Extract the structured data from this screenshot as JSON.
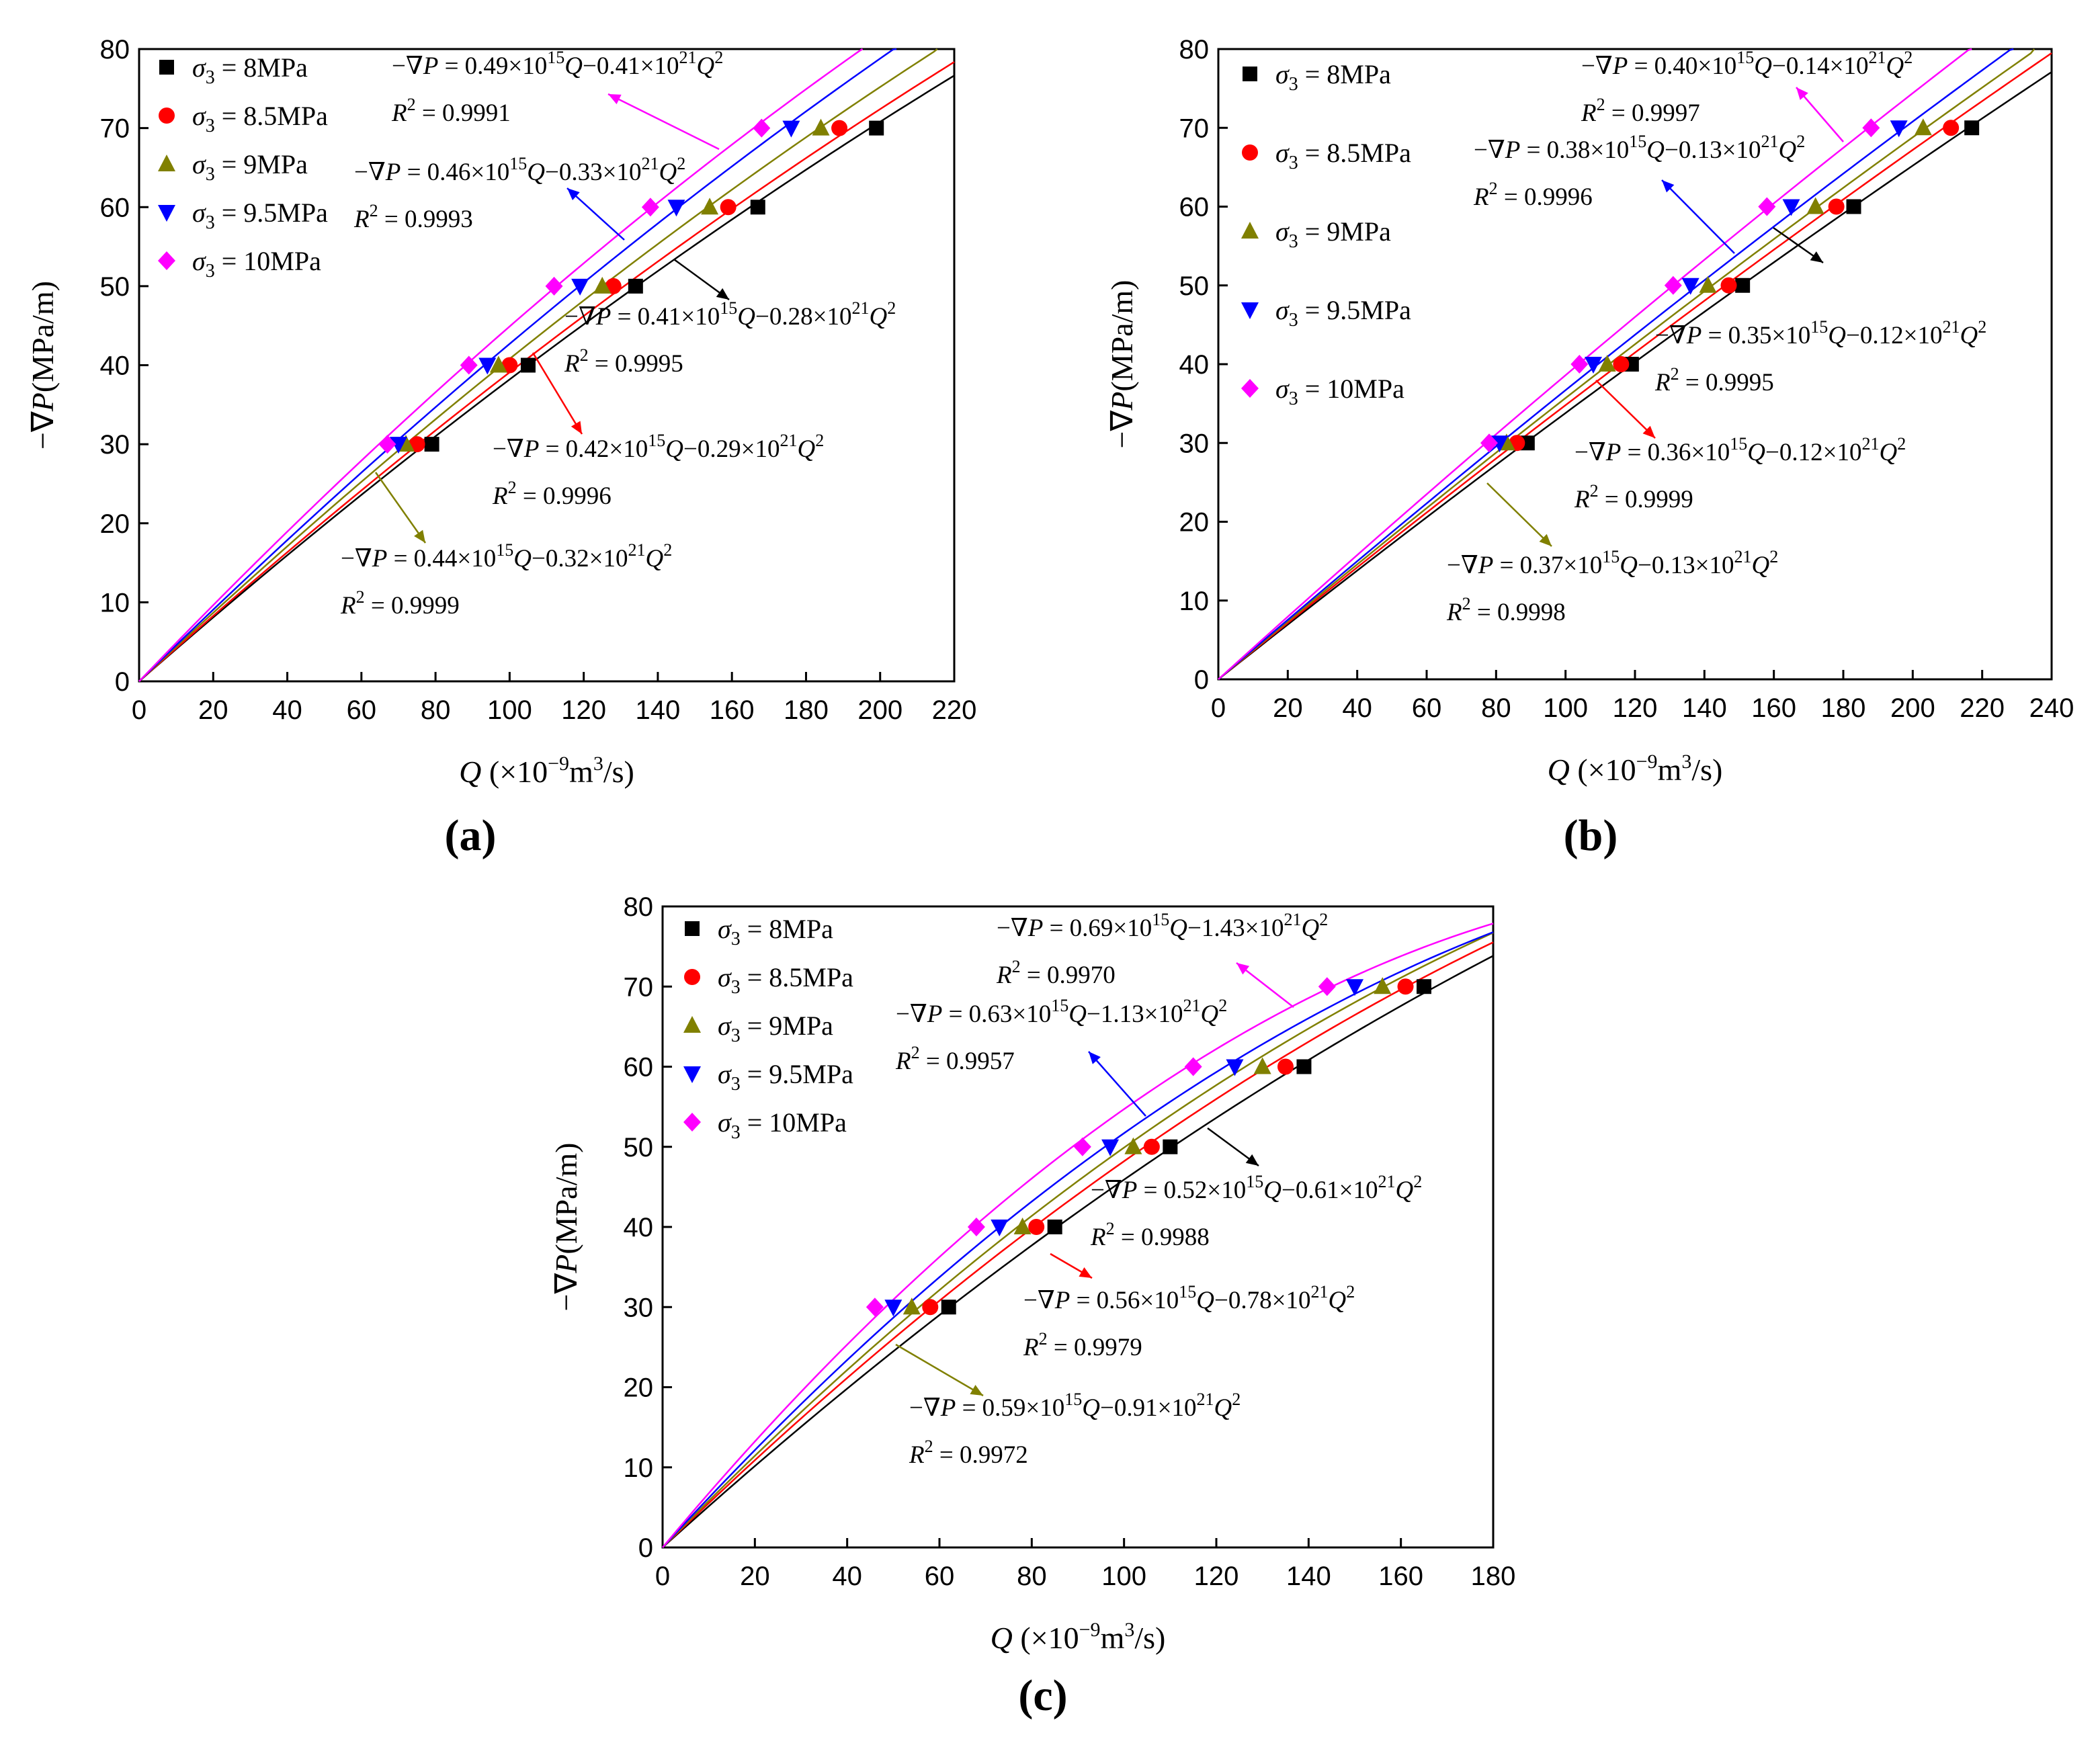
{
  "figure": {
    "legend_symbol": "σ",
    "legend_subscript": "3",
    "legend_infix": " = ",
    "x_axis_prefix": "Q",
    "x_axis_unit_open": "(×10",
    "x_axis_unit_exp": "−9",
    "x_axis_unit_mid": "m",
    "x_axis_unit_exp2": "3",
    "x_axis_unit_close": "/s)",
    "y_axis_pre": "−∇",
    "y_axis_var": "P",
    "y_axis_unit": "(MPa/m)",
    "eq_lhs": "−∇",
    "eq_lhs_var": "P",
    "eq_equals": " = ",
    "eq_times": "×10",
    "eq_exp1": "15",
    "eq_exp2": "21",
    "eq_var": "Q",
    "eq_minus": "−",
    "eq_square": "2",
    "r2_var": "R",
    "r2_exp": "2",
    "r2_equals": " = "
  },
  "chart_data": [
    {
      "panel": "(a)",
      "type": "scatter",
      "xlabel": "Q (×10⁻⁹m³/s)",
      "ylabel": "−∇P(MPa/m)",
      "xlim": [
        0,
        220
      ],
      "ylim": [
        0,
        80
      ],
      "xticks": [
        0,
        20,
        40,
        60,
        80,
        100,
        120,
        140,
        160,
        180,
        200,
        220
      ],
      "yticks": [
        0,
        10,
        20,
        30,
        40,
        50,
        60,
        70,
        80
      ],
      "y_points": [
        30,
        40,
        50,
        60,
        70
      ],
      "series": [
        {
          "name": "8MPa",
          "color": "#000000",
          "marker": "square",
          "x": [
            79,
            105,
            134,
            167,
            199
          ],
          "fit": {
            "a": 0.41,
            "b": 0.28,
            "a_label": "0.41",
            "b_label": "0.28",
            "r2": "0.9995"
          }
        },
        {
          "name": "8.5MPa",
          "color": "#ff0000",
          "marker": "circle",
          "x": [
            75,
            100,
            128,
            159,
            189
          ],
          "fit": {
            "a": 0.42,
            "b": 0.29,
            "a_label": "0.42",
            "b_label": "0.29",
            "r2": "0.9996"
          }
        },
        {
          "name": "9MPa",
          "color": "#808000",
          "marker": "triangle-up",
          "x": [
            72,
            97,
            125,
            154,
            184
          ],
          "fit": {
            "a": 0.44,
            "b": 0.32,
            "a_label": "0.44",
            "b_label": "0.32",
            "r2": "0.9999"
          }
        },
        {
          "name": "9.5MPa",
          "color": "#0000ff",
          "marker": "triangle-down",
          "x": [
            70,
            94,
            119,
            145,
            176
          ],
          "fit": {
            "a": 0.46,
            "b": 0.33,
            "a_label": "0.46",
            "b_label": "0.33",
            "r2": "0.9993"
          }
        },
        {
          "name": "10MPa",
          "color": "#ff00ff",
          "marker": "diamond",
          "x": [
            67,
            89,
            112,
            138,
            168
          ],
          "fit": {
            "a": 0.49,
            "b": 0.41,
            "a_label": "0.49",
            "b_label": "0.41",
            "r2": "0.9991"
          }
        }
      ]
    },
    {
      "panel": "(b)",
      "type": "scatter",
      "xlabel": "Q (×10⁻⁹m³/s)",
      "ylabel": "−∇P(MPa/m)",
      "xlim": [
        0,
        240
      ],
      "ylim": [
        0,
        80
      ],
      "xticks": [
        0,
        20,
        40,
        60,
        80,
        100,
        120,
        140,
        160,
        180,
        200,
        220,
        240
      ],
      "yticks": [
        0,
        10,
        20,
        30,
        40,
        50,
        60,
        70,
        80
      ],
      "y_points": [
        30,
        40,
        50,
        60,
        70
      ],
      "series": [
        {
          "name": "8MPa",
          "color": "#000000",
          "marker": "square",
          "x": [
            89,
            119,
            151,
            183,
            217
          ],
          "fit": {
            "a": 0.35,
            "b": 0.12,
            "a_label": "0.35",
            "b_label": "0.12",
            "r2": "0.9995"
          }
        },
        {
          "name": "8.5MPa",
          "color": "#ff0000",
          "marker": "circle",
          "x": [
            86,
            116,
            147,
            178,
            211
          ],
          "fit": {
            "a": 0.36,
            "b": 0.12,
            "a_label": "0.36",
            "b_label": "0.12",
            "r2": "0.9999"
          }
        },
        {
          "name": "9MPa",
          "color": "#808000",
          "marker": "triangle-up",
          "x": [
            83,
            112,
            141,
            172,
            203
          ],
          "fit": {
            "a": 0.37,
            "b": 0.13,
            "a_label": "0.37",
            "b_label": "0.13",
            "r2": "0.9998"
          }
        },
        {
          "name": "9.5MPa",
          "color": "#0000ff",
          "marker": "triangle-down",
          "x": [
            81,
            108,
            136,
            165,
            196
          ],
          "fit": {
            "a": 0.38,
            "b": 0.13,
            "a_label": "0.38",
            "b_label": "0.13",
            "r2": "0.9996"
          }
        },
        {
          "name": "10MPa",
          "color": "#ff00ff",
          "marker": "diamond",
          "x": [
            78,
            104,
            131,
            158,
            188
          ],
          "fit": {
            "a": 0.4,
            "b": 0.14,
            "a_label": "0.40",
            "b_label": "0.14",
            "r2": "0.9997"
          }
        }
      ]
    },
    {
      "panel": "(c)",
      "type": "scatter",
      "xlabel": "Q (×10⁻⁹m³/s)",
      "ylabel": "−∇P(MPa/m)",
      "xlim": [
        0,
        180
      ],
      "ylim": [
        0,
        80
      ],
      "xticks": [
        0,
        20,
        40,
        60,
        80,
        100,
        120,
        140,
        160,
        180
      ],
      "yticks": [
        0,
        10,
        20,
        30,
        40,
        50,
        60,
        70,
        80
      ],
      "y_points": [
        30,
        40,
        50,
        60,
        70
      ],
      "series": [
        {
          "name": "8MPa",
          "color": "#000000",
          "marker": "square",
          "x": [
            62,
            85,
            110,
            139,
            165
          ],
          "fit": {
            "a": 0.52,
            "b": 0.61,
            "a_label": "0.52",
            "b_label": "0.61",
            "r2": "0.9988"
          }
        },
        {
          "name": "8.5MPa",
          "color": "#ff0000",
          "marker": "circle",
          "x": [
            58,
            81,
            106,
            135,
            161
          ],
          "fit": {
            "a": 0.56,
            "b": 0.78,
            "a_label": "0.56",
            "b_label": "0.78",
            "r2": "0.9979"
          }
        },
        {
          "name": "9MPa",
          "color": "#808000",
          "marker": "triangle-up",
          "x": [
            54,
            78,
            102,
            130,
            156
          ],
          "fit": {
            "a": 0.59,
            "b": 0.91,
            "a_label": "0.59",
            "b_label": "0.91",
            "r2": "0.9972"
          }
        },
        {
          "name": "9.5MPa",
          "color": "#0000ff",
          "marker": "triangle-down",
          "x": [
            50,
            73,
            97,
            124,
            150
          ],
          "fit": {
            "a": 0.63,
            "b": 1.13,
            "a_label": "0.63",
            "b_label": "1.13",
            "r2": "0.9957"
          }
        },
        {
          "name": "10MPa",
          "color": "#ff00ff",
          "marker": "diamond",
          "x": [
            46,
            68,
            91,
            115,
            144
          ],
          "fit": {
            "a": 0.69,
            "b": 1.43,
            "a_label": "0.69",
            "b_label": "1.43",
            "r2": "0.9970"
          }
        }
      ]
    }
  ]
}
